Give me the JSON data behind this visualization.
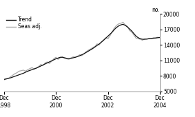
{
  "title": "",
  "ylabel": "no.",
  "ylim": [
    5000,
    20000
  ],
  "yticks": [
    5000,
    8000,
    11000,
    14000,
    17000,
    20000
  ],
  "ytick_labels": [
    "5000",
    "8000",
    "11000",
    "14000",
    "17000",
    "20000"
  ],
  "xtick_labels": [
    "Dec\n1998",
    "Dec\n2000",
    "Dec\n2002",
    "Dec\n2004"
  ],
  "trend_color": "#111111",
  "seas_color": "#aaaaaa",
  "trend_linewidth": 0.9,
  "seas_linewidth": 0.9,
  "legend_labels": [
    "Trend",
    "Seas adj."
  ],
  "background_color": "#ffffff",
  "trend_x": [
    0,
    1,
    2,
    3,
    4,
    5,
    6,
    7,
    8,
    9,
    10,
    11,
    12,
    13,
    14,
    15,
    16,
    17,
    18,
    19,
    20,
    21,
    22,
    23,
    24,
    25,
    26,
    27,
    28,
    29,
    30,
    31,
    32,
    33,
    34,
    35,
    36,
    37,
    38,
    39,
    40,
    41,
    42,
    43,
    44,
    45,
    46,
    47,
    48,
    49,
    50,
    51,
    52,
    53,
    54,
    55,
    56,
    57,
    58,
    59,
    60,
    61,
    62,
    63,
    64,
    65,
    66,
    67,
    68,
    69,
    70,
    71,
    72
  ],
  "trend_y": [
    7300,
    7400,
    7500,
    7600,
    7750,
    7900,
    8050,
    8200,
    8350,
    8500,
    8700,
    8900,
    9050,
    9200,
    9350,
    9500,
    9700,
    9900,
    10100,
    10300,
    10500,
    10700,
    10900,
    11100,
    11300,
    11450,
    11600,
    11600,
    11500,
    11400,
    11350,
    11400,
    11500,
    11600,
    11750,
    11900,
    12100,
    12300,
    12550,
    12800,
    13050,
    13300,
    13600,
    13900,
    14200,
    14550,
    14900,
    15300,
    15700,
    16100,
    16500,
    17000,
    17400,
    17700,
    17900,
    18000,
    17800,
    17500,
    17100,
    16700,
    16200,
    15700,
    15400,
    15200,
    15100,
    15100,
    15150,
    15200,
    15250,
    15300,
    15350,
    15400,
    15450
  ],
  "seas_x": [
    0,
    1,
    2,
    3,
    4,
    5,
    6,
    7,
    8,
    9,
    10,
    11,
    12,
    13,
    14,
    15,
    16,
    17,
    18,
    19,
    20,
    21,
    22,
    23,
    24,
    25,
    26,
    27,
    28,
    29,
    30,
    31,
    32,
    33,
    34,
    35,
    36,
    37,
    38,
    39,
    40,
    41,
    42,
    43,
    44,
    45,
    46,
    47,
    48,
    49,
    50,
    51,
    52,
    53,
    54,
    55,
    56,
    57,
    58,
    59,
    60,
    61,
    62,
    63,
    64,
    65,
    66,
    67,
    68,
    69,
    70,
    71,
    72
  ],
  "seas_y": [
    7200,
    7350,
    7500,
    7800,
    8100,
    8400,
    8600,
    8900,
    9000,
    9100,
    8900,
    9200,
    9400,
    9600,
    9300,
    9500,
    9800,
    10200,
    10000,
    10500,
    10700,
    10400,
    10800,
    11300,
    11600,
    11200,
    11500,
    11700,
    11400,
    11300,
    11200,
    11500,
    11700,
    11600,
    11800,
    12100,
    11900,
    12300,
    12700,
    13000,
    13200,
    13500,
    13700,
    14200,
    14000,
    14600,
    15000,
    15400,
    15200,
    15800,
    16600,
    17300,
    17800,
    18100,
    18200,
    18400,
    17900,
    17600,
    16800,
    16500,
    15900,
    15300,
    15200,
    15100,
    14900,
    15200,
    15100,
    15300,
    15200,
    15400,
    15300,
    15500,
    15400
  ]
}
